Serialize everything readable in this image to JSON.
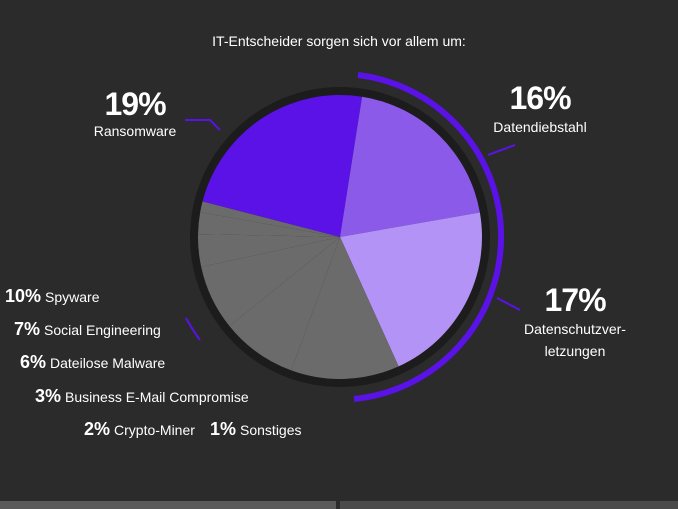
{
  "chart_data": {
    "type": "pie",
    "title": "IT-Entscheider sorgen sich vor allem um:",
    "categories": [
      "Ransomware",
      "Datendiebstahl",
      "Datenschutzver-\nletzungen",
      "Spyware",
      "Social Engineering",
      "Dateilose Malware",
      "Business E-Mail Compromise",
      "Crypto-Miner",
      "Sonstiges"
    ],
    "values": [
      19,
      16,
      17,
      10,
      7,
      6,
      3,
      2,
      1
    ],
    "value_labels": [
      "19%",
      "16%",
      "17%",
      "10%",
      "7%",
      "6%",
      "3%",
      "2%",
      "1%"
    ],
    "colors": [
      "#5a12e6",
      "#8b5ae8",
      "#b394f6",
      "#6b6b6b",
      "#6b6b6b",
      "#6b6b6b",
      "#6b6b6b",
      "#6b6b6b",
      "#6b6b6b"
    ]
  }
}
